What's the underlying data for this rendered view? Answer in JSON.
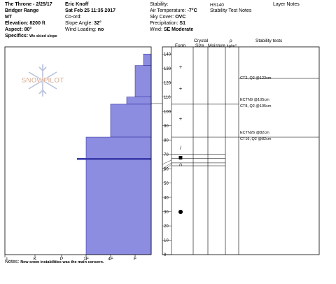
{
  "header": {
    "col1": [
      "The Throne - 2/25/17",
      "Bridger Range",
      "MT",
      "Elevation: 8200 ft",
      "Aspect: 80°"
    ],
    "specifics_label": "Specifics:",
    "specifics_value": "We skied slope",
    "col2": [
      "Eric Knoff",
      "Sat Feb 25 11:35 2017",
      "Co-ord:"
    ],
    "slope_label": "Slope Angle:",
    "slope_value": "32°",
    "wind_loading_label": "Wind Loading:",
    "wind_loading_value": "no",
    "stability_label": "Stability:",
    "air_temp_label": "Air Temperature:",
    "air_temp_value": "-7°C",
    "sky_label": "Sky Cover:",
    "sky_value": "OVC",
    "precip_label": "Precipitation:",
    "precip_value": "S1",
    "wind_label": "Wind:",
    "wind_value": "SE Moderate",
    "hs_label": "HS140",
    "stability_test_notes": "Stability Test Notes",
    "layer_notes": "Layer Notes"
  },
  "columns": {
    "crystal": "Crystal",
    "form": "Form",
    "size": "Size",
    "moisture": "Moisture",
    "rho": "ρ",
    "rho_unit": "kg/m³",
    "stability_tests": "Stability tests"
  },
  "hardness_labels": [
    "I",
    "K",
    "P",
    "1F",
    "4F",
    "F"
  ],
  "depth_ticks": [
    "140",
    "130",
    "120",
    "110",
    "100",
    "90",
    "80",
    "70",
    "60",
    "50",
    "40",
    "30",
    "20",
    "10",
    "0"
  ],
  "logo_text": "SNOWPILOT",
  "stability_tests": [
    "CT2, Q2 @123cm",
    "ECTN9 @105cm",
    "CT8, Q2 @105cm",
    "ECTN26 @82cm",
    "CT16, Q2 @82cm"
  ],
  "crystal_symbols": [
    "+",
    "+",
    "+",
    "/",
    "■",
    "∩",
    "●"
  ],
  "notes_label": "Notes:",
  "notes_value": "New snow instabilities was the main concern.",
  "profile_color": "#8c8ce0",
  "profile_edge": "#3838a8"
}
